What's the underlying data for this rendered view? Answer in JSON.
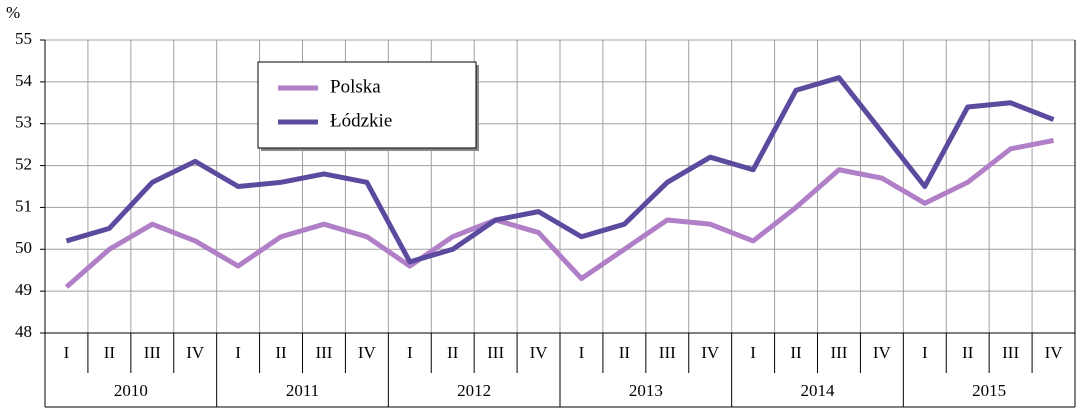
{
  "chart_data": {
    "type": "line",
    "ylabel": "%",
    "categories": [
      "I",
      "II",
      "III",
      "IV",
      "I",
      "II",
      "III",
      "IV",
      "I",
      "II",
      "III",
      "IV",
      "I",
      "II",
      "III",
      "IV",
      "I",
      "II",
      "III",
      "IV",
      "I",
      "II",
      "III",
      "IV"
    ],
    "groups": [
      "2010",
      "2011",
      "2012",
      "2013",
      "2014",
      "2015"
    ],
    "series": [
      {
        "name": "Polska",
        "color": "#b07fc7",
        "values": [
          49.1,
          50.0,
          50.6,
          50.2,
          49.6,
          50.3,
          50.6,
          50.3,
          49.6,
          50.3,
          50.7,
          50.4,
          49.3,
          50.0,
          50.7,
          50.6,
          50.2,
          51.0,
          51.9,
          51.7,
          51.1,
          51.6,
          52.4,
          52.6
        ]
      },
      {
        "name": "Łódzkie",
        "color": "#5b4a9e",
        "values": [
          50.2,
          50.5,
          51.6,
          52.1,
          51.5,
          51.6,
          51.8,
          51.6,
          49.7,
          50.0,
          50.7,
          50.9,
          50.3,
          50.6,
          51.6,
          52.2,
          51.9,
          53.8,
          54.1,
          52.8,
          51.5,
          53.4,
          53.5,
          53.1
        ]
      }
    ],
    "ylim": [
      48,
      55
    ],
    "yticks": [
      48,
      49,
      50,
      51,
      52,
      53,
      54,
      55
    ],
    "grid": true
  }
}
